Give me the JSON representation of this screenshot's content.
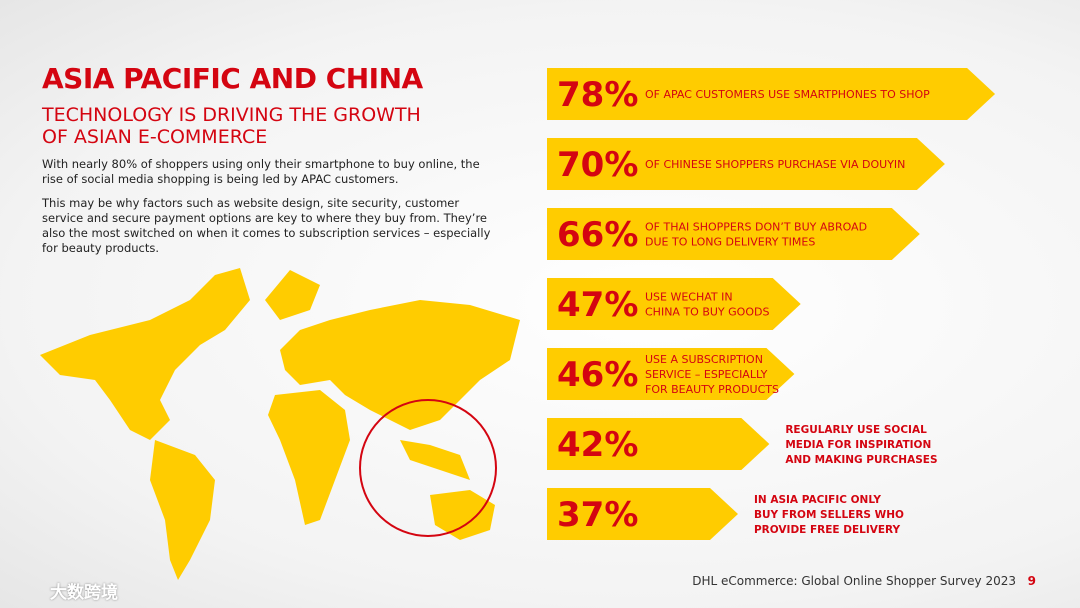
{
  "header": {
    "title": "ASIA PACIFIC AND CHINA",
    "subtitle": "TECHNOLOGY IS DRIVING THE GROWTH OF ASIAN E-COMMERCE"
  },
  "paragraphs": [
    "With nearly 80% of shoppers using only their smartphone to buy online, the rise of social media shopping is being led by APAC customers.",
    "This may be why factors such as website design, site security, customer service and secure payment options are key to where they buy from. They’re also the most switched on when it comes to subscription services – especially for beauty products."
  ],
  "stats": [
    {
      "value": 78,
      "label": "78%",
      "lines": [
        "OF APAC CUSTOMERS USE SMARTPHONES TO SHOP"
      ],
      "text_position": "inside"
    },
    {
      "value": 70,
      "label": "70%",
      "lines": [
        "OF CHINESE SHOPPERS PURCHASE VIA DOUYIN"
      ],
      "text_position": "inside"
    },
    {
      "value": 66,
      "label": "66%",
      "lines": [
        "OF THAI SHOPPERS DON’T BUY ABROAD",
        "DUE TO LONG DELIVERY TIMES"
      ],
      "text_position": "inside"
    },
    {
      "value": 47,
      "label": "47%",
      "lines": [
        "USE WECHAT IN",
        "CHINA TO BUY GOODS"
      ],
      "text_position": "inside"
    },
    {
      "value": 46,
      "label": "46%",
      "lines": [
        "USE A SUBSCRIPTION",
        "SERVICE – ESPECIALLY",
        "FOR BEAUTY PRODUCTS"
      ],
      "text_position": "inside"
    },
    {
      "value": 42,
      "label": "42%",
      "lines": [
        "REGULARLY USE SOCIAL",
        "MEDIA FOR INSPIRATION",
        "AND MAKING PURCHASES"
      ],
      "text_position": "outside"
    },
    {
      "value": 37,
      "label": "37%",
      "lines": [
        "IN ASIA PACIFIC ONLY",
        "BUY FROM SELLERS WHO",
        "PROVIDE FREE DELIVERY"
      ],
      "text_position": "outside"
    }
  ],
  "footer": {
    "source": "DHL eCommerce: Global Online Shopper Survey 2023",
    "page": "9",
    "watermark": "大数跨境"
  }
}
